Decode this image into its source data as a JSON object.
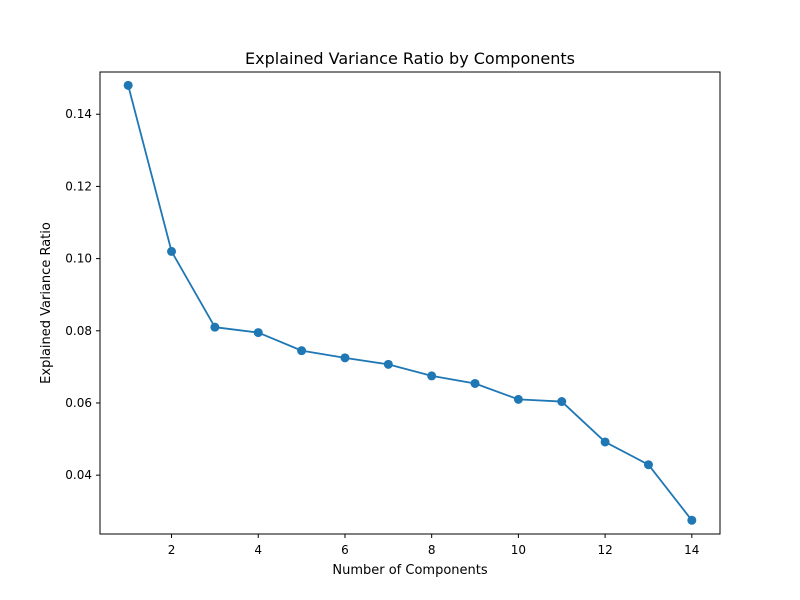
{
  "chart_data": {
    "type": "line",
    "title": "Explained Variance Ratio by Components",
    "xlabel": "Number of Components",
    "ylabel": "Explained Variance Ratio",
    "xlim": [
      0.35,
      14.65
    ],
    "ylim": [
      0.0237,
      0.1517
    ],
    "xticks": [
      2,
      4,
      6,
      8,
      10,
      12,
      14
    ],
    "yticks": [
      0.04,
      0.06,
      0.08,
      0.1,
      0.12,
      0.14
    ],
    "ytick_labels": [
      "0.04",
      "0.06",
      "0.08",
      "0.10",
      "0.12",
      "0.14"
    ],
    "grid": false,
    "series": [
      {
        "color": "#1f77b4",
        "marker": "circle",
        "x": [
          1,
          2,
          3,
          4,
          5,
          6,
          7,
          8,
          9,
          10,
          11,
          12,
          13,
          14
        ],
        "y": [
          0.148,
          0.102,
          0.081,
          0.0795,
          0.0745,
          0.0725,
          0.0707,
          0.0675,
          0.0654,
          0.061,
          0.0604,
          0.0492,
          0.0429,
          0.0275
        ]
      }
    ]
  }
}
